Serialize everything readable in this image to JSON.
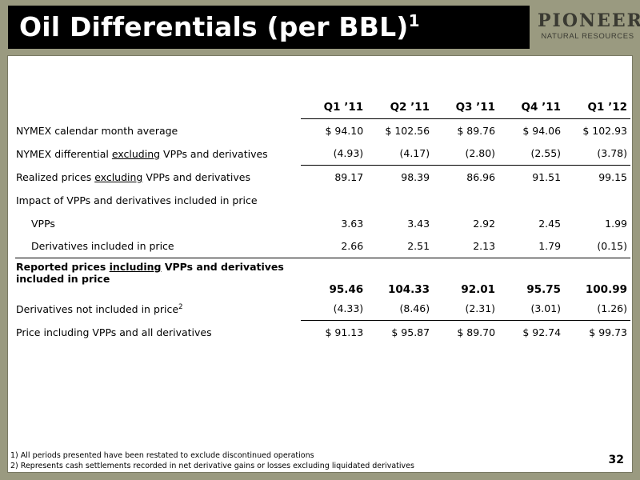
{
  "title": {
    "text": "Oil Differentials (per BBL)",
    "superscript": "1"
  },
  "logo": {
    "main": "PIONEER",
    "sub": "NATURAL RESOURCES"
  },
  "table": {
    "columns": [
      "Q1 ’11",
      "Q2 ’11",
      "Q3 ’11",
      "Q4 ’11",
      "Q1 ’12"
    ],
    "rows": {
      "nymex_avg": {
        "label": "NYMEX calendar month average",
        "values": [
          "$ 94.10",
          "$ 102.56",
          "$ 89.76",
          "$ 94.06",
          "$ 102.93"
        ]
      },
      "nymex_diff": {
        "label_pre": "NYMEX differential ",
        "label_u": "excluding",
        "label_post": " VPPs and derivatives",
        "values": [
          "(4.93)",
          "(4.17)",
          "(2.80)",
          "(2.55)",
          "(3.78)"
        ]
      },
      "realized": {
        "label_pre": "Realized prices ",
        "label_u": "excluding",
        "label_post": " VPPs and derivatives",
        "values": [
          "89.17",
          "98.39",
          "86.96",
          "91.51",
          "99.15"
        ]
      },
      "impact": {
        "label": "Impact of VPPs and derivatives included in price"
      },
      "vpps": {
        "label": "VPPs",
        "values": [
          "3.63",
          "3.43",
          "2.92",
          "2.45",
          "1.99"
        ]
      },
      "deriv_incl": {
        "label": "Derivatives included in price",
        "values": [
          "2.66",
          "2.51",
          "2.13",
          "1.79",
          "(0.15)"
        ]
      },
      "reported": {
        "label_pre": "Reported prices ",
        "label_u": "including",
        "label_post": " VPPs and derivatives",
        "label_line2": "included in price",
        "values": [
          "95.46",
          "104.33",
          "92.01",
          "95.75",
          "100.99"
        ]
      },
      "deriv_not_incl": {
        "label": "Derivatives not included in price",
        "label_sup": "2",
        "values": [
          "(4.33)",
          "(8.46)",
          "(2.31)",
          "(3.01)",
          "(1.26)"
        ]
      },
      "price_all": {
        "label": "Price including VPPs and all derivatives",
        "values": [
          "$ 91.13",
          "$ 95.87",
          "$ 89.70",
          "$ 92.74",
          "$ 99.73"
        ]
      }
    }
  },
  "footnotes": [
    "1) All periods presented have been restated to exclude discontinued operations",
    "2) Represents cash settlements recorded in net derivative gains or losses excluding liquidated derivatives"
  ],
  "page_number": "32",
  "colors": {
    "background": "#9a9a80",
    "title_bar": "#000000",
    "logo_text": "#3a3a32"
  }
}
